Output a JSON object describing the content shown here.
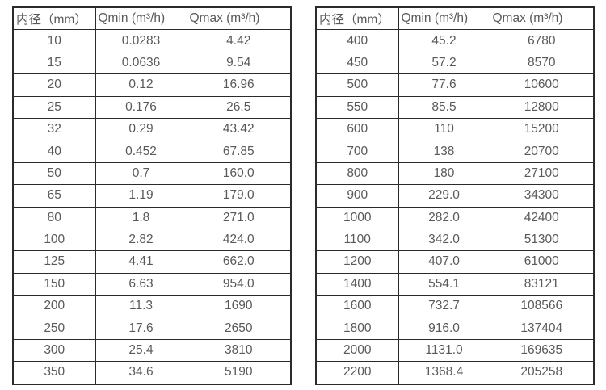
{
  "page": {
    "background": "#ffffff",
    "text_color": "#58595b",
    "border_color": "#2b2b2b"
  },
  "chart_data": [
    {
      "type": "table",
      "title": "",
      "columns": [
        "内径（mm）",
        "Qmin (m³/h)",
        "Qmax (m³/h)"
      ],
      "rows": [
        [
          "10",
          "0.0283",
          "4.42"
        ],
        [
          "15",
          "0.0636",
          "9.54"
        ],
        [
          "20",
          "0.12",
          "16.96"
        ],
        [
          "25",
          "0.176",
          "26.5"
        ],
        [
          "32",
          "0.29",
          "43.42"
        ],
        [
          "40",
          "0.452",
          "67.85"
        ],
        [
          "50",
          "0.7",
          "160.0"
        ],
        [
          "65",
          "1.19",
          "179.0"
        ],
        [
          "80",
          "1.8",
          "271.0"
        ],
        [
          "100",
          "2.82",
          "424.0"
        ],
        [
          "125",
          "4.41",
          "662.0"
        ],
        [
          "150",
          "6.63",
          "954.0"
        ],
        [
          "200",
          "11.3",
          "1690"
        ],
        [
          "250",
          "17.6",
          "2650"
        ],
        [
          "300",
          "25.4",
          "3810"
        ],
        [
          "350",
          "34.6",
          "5190"
        ]
      ]
    },
    {
      "type": "table",
      "title": "",
      "columns": [
        "内径（mm）",
        "Qmin (m³/h)",
        "Qmax (m³/h)"
      ],
      "rows": [
        [
          "400",
          "45.2",
          "6780"
        ],
        [
          "450",
          "57.2",
          "8570"
        ],
        [
          "500",
          "77.6",
          "10600"
        ],
        [
          "550",
          "85.5",
          "12800"
        ],
        [
          "600",
          "110",
          "15200"
        ],
        [
          "700",
          "138",
          "20700"
        ],
        [
          "800",
          "180",
          "27100"
        ],
        [
          "900",
          "229.0",
          "34300"
        ],
        [
          "1000",
          "282.0",
          "42400"
        ],
        [
          "1100",
          "342.0",
          "51300"
        ],
        [
          "1200",
          "407.0",
          "61000"
        ],
        [
          "1400",
          "554.1",
          "83121"
        ],
        [
          "1600",
          "732.7",
          "108566"
        ],
        [
          "1800",
          "916.0",
          "137404"
        ],
        [
          "2000",
          "1131.0",
          "169635"
        ],
        [
          "2200",
          "1368.4",
          "205258"
        ]
      ]
    }
  ]
}
